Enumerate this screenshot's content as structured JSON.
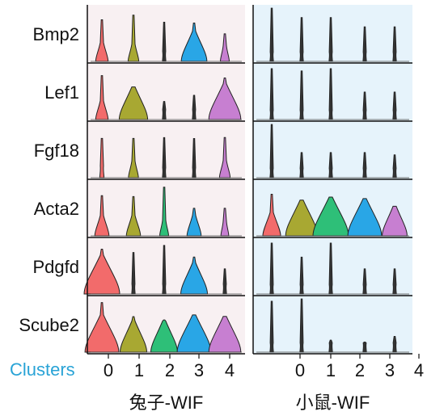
{
  "chart_data": {
    "type": "violin",
    "axis_label": "Clusters",
    "axis_label_color": "#29a3d6",
    "genes": [
      "Bmp2",
      "Lef1",
      "Fgf18",
      "Acta2",
      "Pdgfd",
      "Scube2"
    ],
    "cluster_colors": [
      "#f26b6b",
      "#a8a832",
      "#2ebf78",
      "#29a6e6",
      "#c77fd1"
    ],
    "panels": [
      {
        "title": "兔子-WIF",
        "background": "#f8f0f2",
        "x_ticks": [
          "0",
          "1",
          "2",
          "3",
          "4"
        ],
        "clusters": [
          "0",
          "1",
          "2",
          "3",
          "4"
        ],
        "violins": [
          [
            {
              "w": 0.35,
              "spike": 0.75
            },
            {
              "w": 0.3,
              "spike": 0.85
            },
            {
              "w": 0.06,
              "spike": 0.7
            },
            {
              "w": 0.72,
              "spike": 0.68
            },
            {
              "w": 0.25,
              "spike": 0.45
            }
          ],
          [
            {
              "w": 0.35,
              "spike": 0.8
            },
            {
              "w": 0.8,
              "spike": 0.5
            },
            {
              "w": 0.06,
              "spike": 0.25
            },
            {
              "w": 0.06,
              "spike": 0.38
            },
            {
              "w": 0.9,
              "spike": 0.75
            }
          ],
          [
            {
              "w": 0.12,
              "spike": 0.7
            },
            {
              "w": 0.28,
              "spike": 0.7
            },
            {
              "w": 0.06,
              "spike": 0.72
            },
            {
              "w": 0.06,
              "spike": 0.7
            },
            {
              "w": 0.3,
              "spike": 0.72
            }
          ],
          [
            {
              "w": 0.4,
              "spike": 0.72
            },
            {
              "w": 0.4,
              "spike": 0.7
            },
            {
              "w": 0.25,
              "spike": 0.9
            },
            {
              "w": 0.4,
              "spike": 0.45
            },
            {
              "w": 0.22,
              "spike": 0.45
            }
          ],
          [
            {
              "w": 1.0,
              "spike": 0.82
            },
            {
              "w": 0.06,
              "spike": 0.75
            },
            {
              "w": 0.06,
              "spike": 0.9
            },
            {
              "w": 0.75,
              "spike": 0.65
            },
            {
              "w": 0.06,
              "spike": 0.4
            }
          ],
          [
            {
              "w": 0.95,
              "spike": 0.92
            },
            {
              "w": 0.75,
              "spike": 0.62
            },
            {
              "w": 0.75,
              "spike": 0.55
            },
            {
              "w": 0.95,
              "spike": 0.55
            },
            {
              "w": 0.9,
              "spike": 0.55
            }
          ]
        ]
      },
      {
        "title": "小鼠-WIF",
        "background": "#e6f3fb",
        "x_ticks": [
          "0",
          "1",
          "2",
          "3",
          "4"
        ],
        "clusters": [
          "",
          "0",
          "1",
          "2",
          "3"
        ],
        "violins": [
          [
            {
              "w": 0.04,
              "spike": 1.0
            },
            {
              "w": 0.04,
              "spike": 0.8
            },
            {
              "w": 0.04,
              "spike": 0.8
            },
            {
              "w": 0.04,
              "spike": 0.6
            },
            {
              "w": 0.04,
              "spike": 0.6
            }
          ],
          [
            {
              "w": 0.04,
              "spike": 0.95
            },
            {
              "w": 0.04,
              "spike": 0.9
            },
            {
              "w": 0.04,
              "spike": 0.95
            },
            {
              "w": 0.04,
              "spike": 0.45
            },
            {
              "w": 0.04,
              "spike": 0.45
            }
          ],
          [
            {
              "w": 0.04,
              "spike": 1.0
            },
            {
              "w": 0.04,
              "spike": 0.4
            },
            {
              "w": 0.04,
              "spike": 0.4
            },
            {
              "w": 0.04,
              "spike": 0.4
            },
            {
              "w": 0.04,
              "spike": 0.35
            }
          ],
          [
            {
              "w": 0.5,
              "spike": 0.75
            },
            {
              "w": 0.9,
              "spike": 0.0
            },
            {
              "w": 1.0,
              "spike": 0.0
            },
            {
              "w": 0.95,
              "spike": 0.0
            },
            {
              "w": 0.7,
              "spike": 0.0
            }
          ],
          [
            {
              "w": 0.04,
              "spike": 0.95
            },
            {
              "w": 0.04,
              "spike": 0.65
            },
            {
              "w": 0.04,
              "spike": 0.95
            },
            {
              "w": 0.04,
              "spike": 0.4
            },
            {
              "w": 0.04,
              "spike": 0.4
            }
          ],
          [
            {
              "w": 0.04,
              "spike": 0.95
            },
            {
              "w": 0.04,
              "spike": 1.0
            },
            {
              "w": 0.04,
              "spike": 0.12
            },
            {
              "w": 0.04,
              "spike": 0.08
            },
            {
              "w": 0.04,
              "spike": 0.2
            }
          ]
        ]
      }
    ]
  }
}
